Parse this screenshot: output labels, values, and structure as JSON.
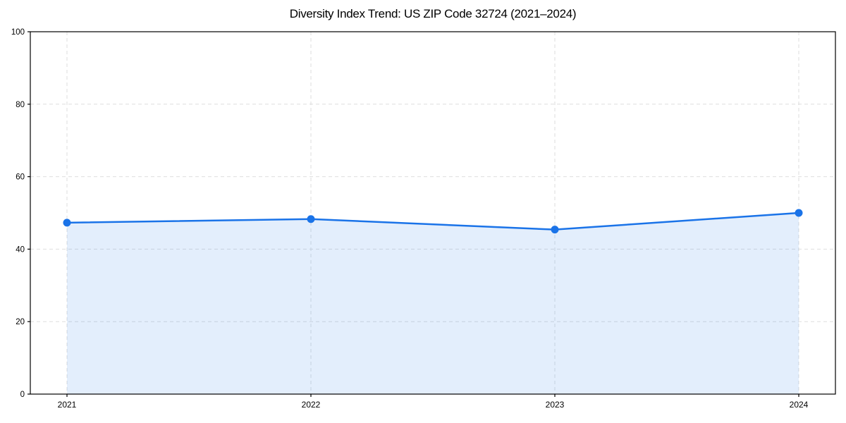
{
  "page": {
    "background": "#ffffff"
  },
  "chart_data": {
    "type": "line",
    "title": "Diversity Index Trend: US ZIP Code 32724 (2021–2024)",
    "categories": [
      "2021",
      "2022",
      "2023",
      "2024"
    ],
    "series": [
      {
        "name": "Diversity Index",
        "values": [
          47.3,
          48.3,
          45.4,
          50.0
        ]
      }
    ],
    "xlabel": "",
    "ylabel": "",
    "ylim": [
      0,
      100
    ],
    "yticks": [
      0,
      20,
      40,
      60,
      80,
      100
    ],
    "grid": true,
    "grid_style": "dashed",
    "legend_position": "none",
    "colors": {
      "line": "#1a73e8",
      "marker": "#1a73e8",
      "area_fill": "rgba(26,115,232,0.12)",
      "gridline": "#dedede",
      "frame": "#000000",
      "tick_label": "#000000"
    },
    "marker": "circle",
    "area": true
  }
}
